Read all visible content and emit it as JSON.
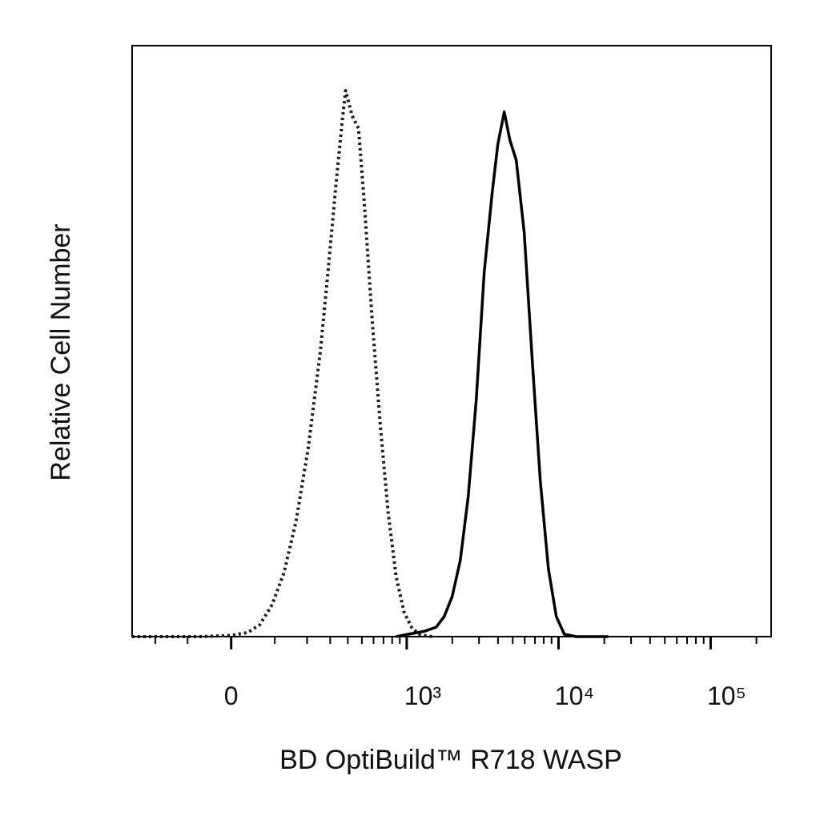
{
  "chart_data": {
    "type": "line",
    "x_label": "BD OptiBuild™ R718 WASP",
    "y_label": "Relative Cell Number",
    "xscale": "biexponential",
    "xlim": [
      -300,
      250000
    ],
    "xticks": [
      {
        "value": 0,
        "label": "0"
      },
      {
        "value": 1000,
        "label": "10³"
      },
      {
        "value": 10000,
        "label": "10⁴"
      },
      {
        "value": 100000,
        "label": "10⁵"
      }
    ],
    "xminorticks": [
      -200,
      -100,
      100,
      200,
      300,
      400,
      500,
      600,
      700,
      800,
      900,
      2000,
      3000,
      4000,
      5000,
      6000,
      7000,
      8000,
      9000,
      20000,
      30000,
      40000,
      50000,
      60000,
      70000,
      80000,
      90000,
      200000
    ],
    "ylim": [
      0,
      100
    ],
    "series": [
      {
        "color": "#1a1a1a",
        "line_style": "dotted",
        "x": [
          -300,
          -70,
          0,
          36,
          63,
          93,
          125,
          162,
          204,
          253,
          289,
          330,
          366,
          386,
          429,
          474,
          518,
          588,
          666,
          752,
          850,
          962,
          1086,
          1230,
          1474
        ],
        "values": [
          0,
          0,
          0.2,
          0.7,
          2.0,
          5.4,
          10.8,
          19.6,
          31.8,
          48.1,
          61.7,
          76.6,
          87.4,
          92.4,
          88.1,
          86.0,
          73.8,
          53.5,
          35.8,
          21.0,
          10.2,
          4.1,
          1.4,
          0.3,
          0
        ]
      },
      {
        "color": "#000000",
        "line_style": "solid",
        "x": [
          850,
          1022,
          1306,
          1566,
          1770,
          1999,
          2260,
          2549,
          2877,
          3247,
          3666,
          3990,
          4400,
          4794,
          5273,
          5950,
          6726,
          7586,
          8573,
          9673,
          10913,
          13099,
          21263
        ],
        "values": [
          0,
          0.4,
          0.9,
          1.6,
          3.4,
          6.8,
          12.9,
          23.7,
          40.0,
          61.7,
          75.2,
          83.3,
          88.8,
          84.0,
          80.6,
          68.4,
          46.7,
          26.4,
          11.5,
          3.4,
          0.4,
          0,
          0
        ]
      }
    ]
  }
}
